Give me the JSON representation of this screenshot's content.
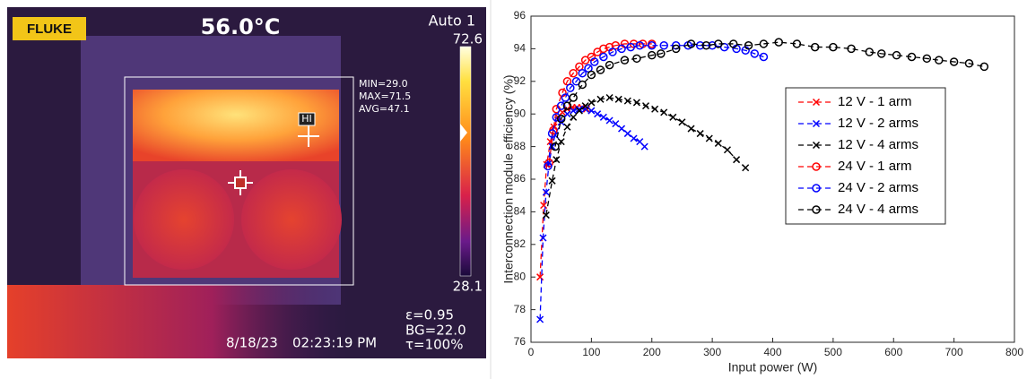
{
  "thermal_image": {
    "brand": "FLUKE",
    "center_temp": "56.0°C",
    "mode": "Auto 1",
    "scale_max": "72.6",
    "scale_min": "28.1",
    "box_stats": [
      "MIN=29.0",
      "MAX=71.5",
      "AVG=47.1"
    ],
    "hot_marker": "HI",
    "settings": [
      "ε=0.95",
      "BG=22.0",
      "τ=100%"
    ],
    "date": "8/18/23",
    "time": "02:23:19 PM"
  },
  "chart_data": {
    "type": "line",
    "xlabel": "Input power (W)",
    "ylabel": "Interconnection module efficiency (%)",
    "xlim": [
      0,
      800
    ],
    "ylim": [
      76,
      96
    ],
    "xticks": [
      0,
      100,
      200,
      300,
      400,
      500,
      600,
      700,
      800
    ],
    "yticks": [
      76,
      78,
      80,
      82,
      84,
      86,
      88,
      90,
      92,
      94,
      96
    ],
    "legend": "center right",
    "line_style": "dashed",
    "series": [
      {
        "name": "12 V - 1 arm",
        "color": "#ff0000",
        "marker": "x",
        "x": [
          15,
          21,
          26,
          32,
          38,
          45,
          52,
          60,
          68,
          76,
          84,
          92
        ],
        "values": [
          80,
          84.4,
          86.9,
          88.3,
          89.2,
          89.8,
          90.1,
          90.3,
          90.4,
          90.4,
          90.4,
          90.3
        ]
      },
      {
        "name": "12 V - 2 arms",
        "color": "#0000ff",
        "marker": "x",
        "x": [
          15,
          20,
          25,
          30,
          35,
          40,
          50,
          60,
          70,
          80,
          90,
          100,
          110,
          120,
          130,
          140,
          150,
          160,
          170,
          180,
          188
        ],
        "values": [
          77.4,
          82.4,
          85.2,
          87,
          88,
          88.7,
          89.5,
          90,
          90.2,
          90.3,
          90.3,
          90.2,
          90,
          89.8,
          89.6,
          89.4,
          89.1,
          88.8,
          88.5,
          88.3,
          88
        ]
      },
      {
        "name": "12 V - 4 arms",
        "color": "#000000",
        "marker": "x",
        "x": [
          25,
          35,
          42,
          50,
          60,
          70,
          80,
          90,
          100,
          115,
          130,
          145,
          160,
          175,
          190,
          205,
          220,
          235,
          250,
          265,
          280,
          295,
          310,
          325,
          340,
          355
        ],
        "values": [
          83.8,
          85.9,
          87.2,
          88.3,
          89.2,
          89.8,
          90.2,
          90.5,
          90.7,
          90.9,
          91,
          90.9,
          90.8,
          90.7,
          90.5,
          90.3,
          90.1,
          89.8,
          89.5,
          89.1,
          88.8,
          88.5,
          88.2,
          87.8,
          87.2,
          86.7
        ]
      },
      {
        "name": "24 V - 1 arm",
        "color": "#ff0000",
        "marker": "o",
        "x": [
          30,
          37,
          42,
          52,
          60,
          70,
          80,
          90,
          100,
          110,
          120,
          130,
          140,
          155,
          170,
          185,
          200
        ],
        "values": [
          87,
          89,
          90.3,
          91.3,
          92,
          92.5,
          92.9,
          93.3,
          93.5,
          93.8,
          94,
          94.1,
          94.2,
          94.3,
          94.3,
          94.3,
          94.3
        ]
      },
      {
        "name": "24 V - 2 arms",
        "color": "#0000ff",
        "marker": "o",
        "x": [
          28,
          35,
          42,
          50,
          57,
          65,
          75,
          85,
          95,
          105,
          120,
          135,
          150,
          165,
          180,
          200,
          220,
          240,
          260,
          280,
          300,
          320,
          340,
          355,
          370,
          385
        ],
        "values": [
          86.8,
          88.8,
          89.8,
          90.5,
          91,
          91.6,
          92,
          92.5,
          92.8,
          93.2,
          93.5,
          93.8,
          94,
          94.1,
          94.2,
          94.2,
          94.2,
          94.2,
          94.2,
          94.2,
          94.2,
          94.1,
          94,
          93.9,
          93.7,
          93.5
        ]
      },
      {
        "name": "24 V - 4 arms",
        "color": "#000000",
        "marker": "o",
        "x": [
          40,
          50,
          60,
          70,
          85,
          100,
          115,
          130,
          155,
          175,
          200,
          215,
          240,
          265,
          290,
          310,
          335,
          360,
          385,
          410,
          440,
          470,
          500,
          530,
          560,
          580,
          605,
          630,
          655,
          675,
          700,
          725,
          750
        ],
        "values": [
          88,
          89.7,
          90.5,
          91,
          91.8,
          92.4,
          92.7,
          93,
          93.3,
          93.4,
          93.6,
          93.7,
          94,
          94.3,
          94.2,
          94.3,
          94.3,
          94.2,
          94.3,
          94.4,
          94.3,
          94.1,
          94.1,
          94,
          93.8,
          93.7,
          93.6,
          93.5,
          93.4,
          93.3,
          93.2,
          93.1,
          92.9
        ]
      }
    ]
  }
}
